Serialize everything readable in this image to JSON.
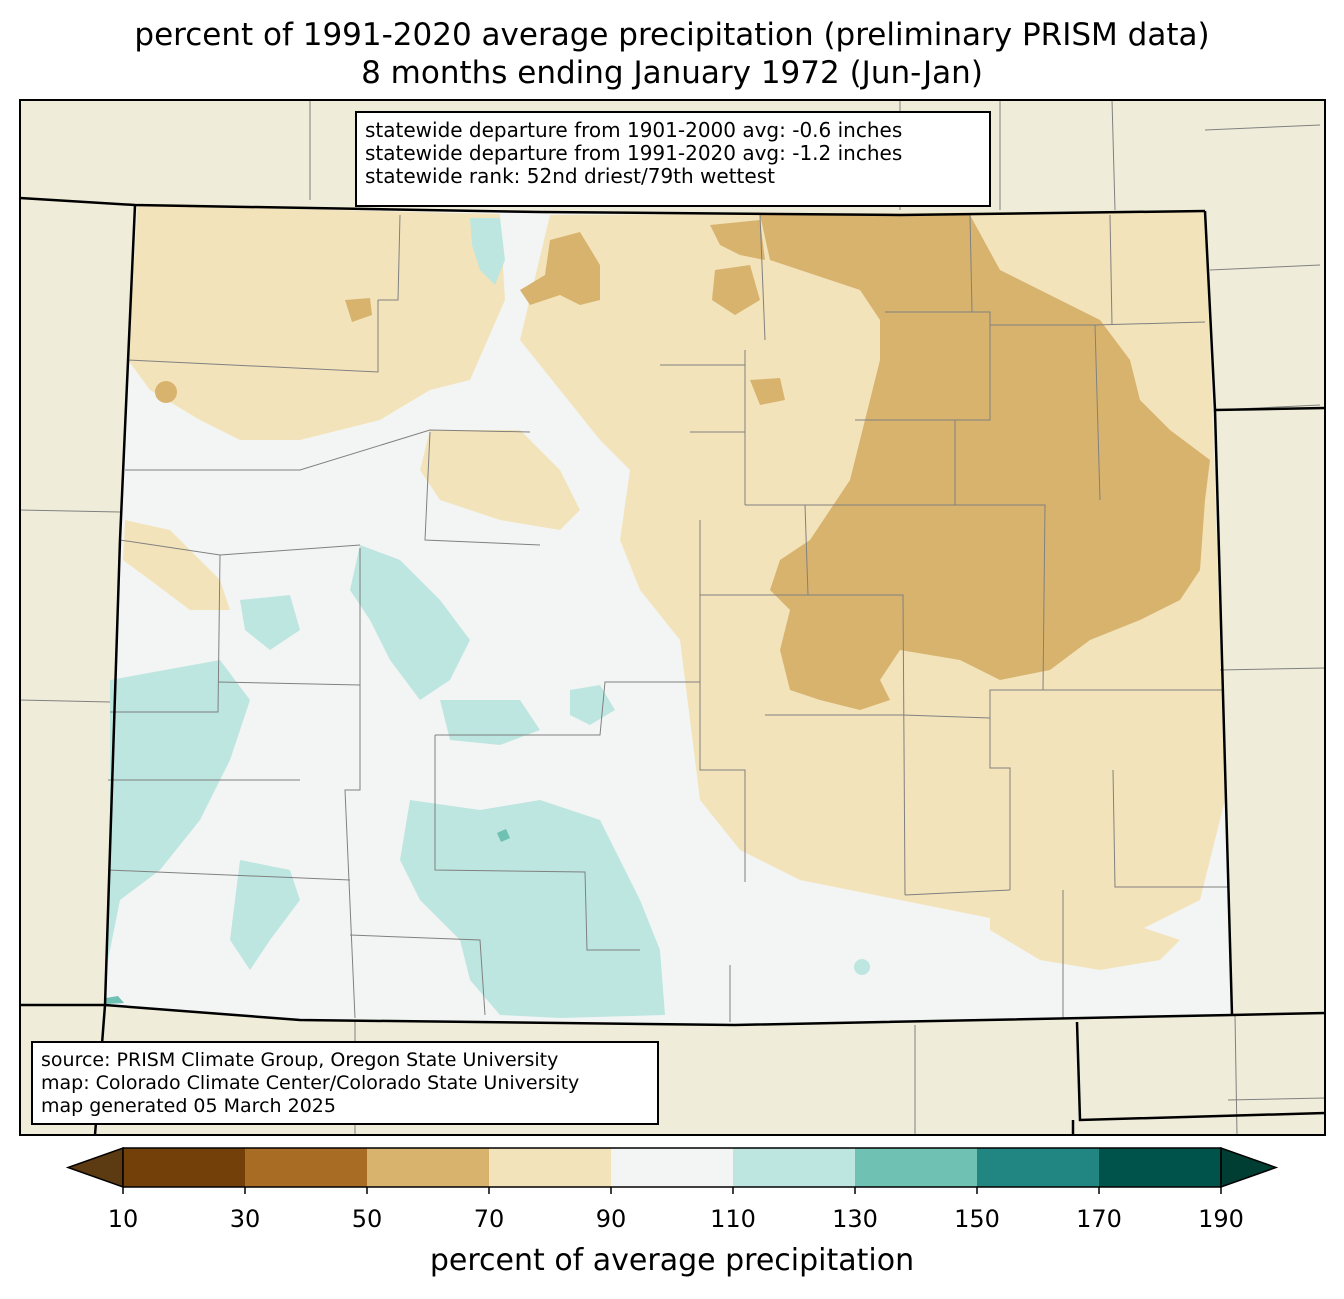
{
  "title": {
    "line1": "percent of 1991-2020 average precipitation (preliminary PRISM data)",
    "line2": "8 months ending January 1972 (Jun-Jan)"
  },
  "stats": {
    "line1": "statewide departure from 1901-2000 avg: -0.6 inches",
    "line2": "statewide departure from 1991-2020 avg: -1.2 inches",
    "line3": "statewide rank: 52nd driest/79th wettest"
  },
  "source": {
    "line1": "source: PRISM Climate Group, Oregon State University",
    "line2": "map: Colorado Climate Center/Colorado State University",
    "line3": "map generated 05 March 2025"
  },
  "colorbar": {
    "label": "percent of average precipitation",
    "ticks": [
      "10",
      "30",
      "50",
      "70",
      "90",
      "110",
      "130",
      "150",
      "170",
      "190"
    ],
    "colors": [
      "#5c3a12",
      "#734009",
      "#a86c24",
      "#d8b36e",
      "#f3e3ba",
      "#f3f5f4",
      "#bde6e0",
      "#6ec1b3",
      "#218681",
      "#00534a",
      "#003d33"
    ]
  },
  "colors": {
    "land_outside": "#efedd9",
    "county_lines": "#808080",
    "state_lines": "#000000"
  }
}
